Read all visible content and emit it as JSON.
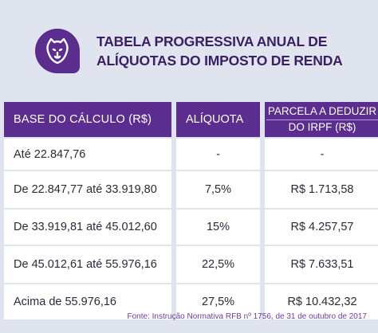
{
  "header": {
    "title_line1": "TABELA PROGRESSIVA ANUAL DE",
    "title_line2": "ALÍQUOTAS DO IMPOSTO DE RENDA"
  },
  "colors": {
    "brand_purple": "#5b2d8f",
    "background": "#dfe4ef",
    "row_background": "#ffffff",
    "title_text": "#3a1f63"
  },
  "logo": {
    "icon": "lioness-head-icon"
  },
  "table": {
    "headers": {
      "base": "BASE DO CÁLCULO (R$)",
      "aliquota": "ALÍQUOTA",
      "parcela_line1": "PARCELA A DEDUZIR",
      "parcela_line2": "DO IRPF (R$)"
    },
    "rows": [
      {
        "base": "Até 22.847,76",
        "aliquota": "-",
        "parcela": "-"
      },
      {
        "base": "De 22.847,77 até 33.919,80",
        "aliquota": "7,5%",
        "parcela": "R$ 1.713,58"
      },
      {
        "base": "De 33.919,81 até 45.012,60",
        "aliquota": "15%",
        "parcela": "R$ 4.257,57"
      },
      {
        "base": "De 45.012,61 até 55.976,16",
        "aliquota": "22,5%",
        "parcela": "R$ 7.633,51"
      },
      {
        "base": "Acima de 55.976,16",
        "aliquota": "27,5%",
        "parcela": "R$ 10.432,32"
      }
    ]
  },
  "footer": {
    "source": "Fonte: Instrução Normativa RFB nº 1756, de 31 de outubro de 2017"
  }
}
